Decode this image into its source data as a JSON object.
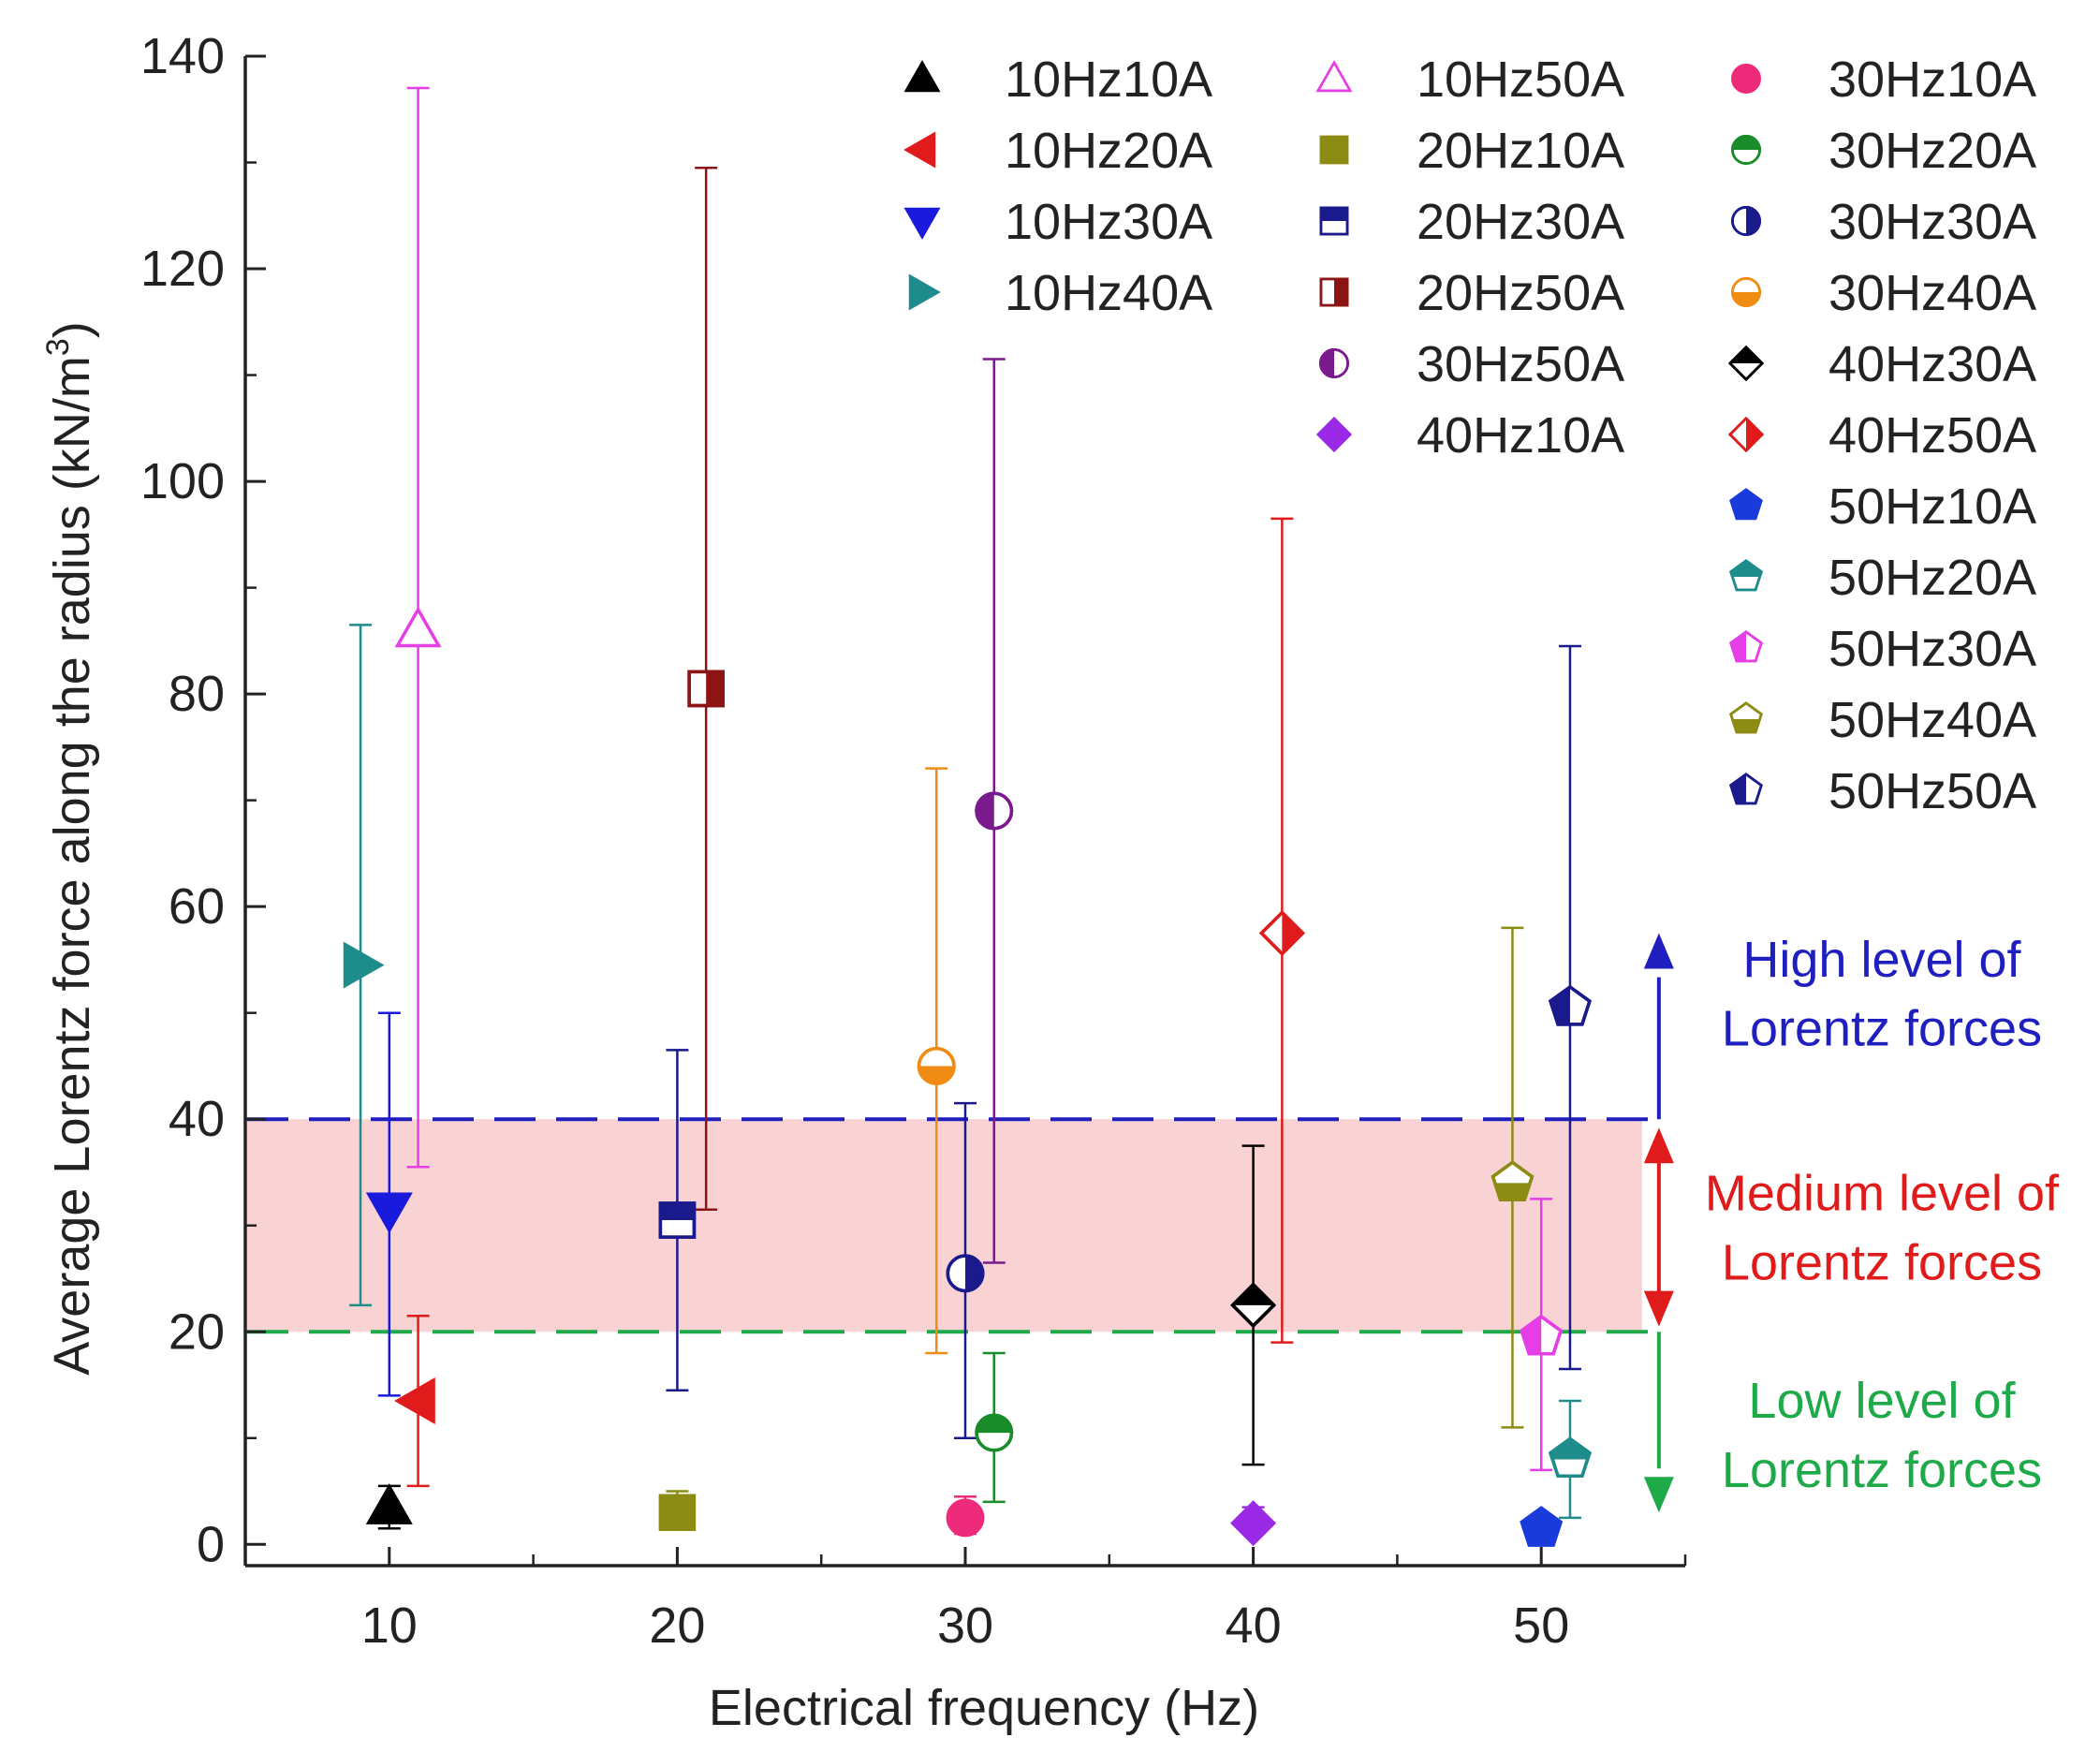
{
  "chart_data": {
    "type": "scatter",
    "xlabel": "Electrical frequency (Hz)",
    "ylabel": "Average Lorentz force along the radius (kN/m",
    "ylabel_sup": "3",
    "ylabel_close": ")",
    "xlim": [
      5,
      55
    ],
    "ylim": [
      -2,
      140
    ],
    "x_ticks": [
      10,
      20,
      30,
      40,
      50
    ],
    "y_ticks": [
      0,
      20,
      40,
      60,
      80,
      100,
      120,
      140
    ],
    "thresholds": [
      {
        "name": "high",
        "y": 40,
        "color": "#1f1fbf"
      },
      {
        "name": "low",
        "y": 20,
        "color": "#1faa4a"
      }
    ],
    "band": {
      "from": 20,
      "to": 40,
      "color": "#f9d3d3"
    },
    "annotations": [
      {
        "name": "high",
        "lines": [
          "High level of",
          "Lorentz forces"
        ],
        "color": "#1f1fbf"
      },
      {
        "name": "medium",
        "lines": [
          "Medium level of",
          "Lorentz forces"
        ],
        "color": "#e01b1b"
      },
      {
        "name": "low",
        "lines": [
          "Low level of",
          "Lorentz forces"
        ],
        "color": "#1faa4a"
      }
    ],
    "series": [
      {
        "name": "10Hz10A",
        "x": 10,
        "y": 3.5,
        "low": 1.5,
        "high": 5.5,
        "color": "#000000",
        "marker": "triangle-up",
        "fill": "full"
      },
      {
        "name": "10Hz20A",
        "x": 11,
        "y": 13.5,
        "low": 5.5,
        "high": 21.5,
        "color": "#e01b1b",
        "marker": "triangle-left",
        "fill": "full"
      },
      {
        "name": "10Hz30A",
        "x": 10,
        "y": 31.5,
        "low": 14,
        "high": 50,
        "color": "#1a1adc",
        "marker": "triangle-down",
        "fill": "full"
      },
      {
        "name": "10Hz40A",
        "x": 9,
        "y": 54.5,
        "low": 22.5,
        "high": 86.5,
        "color": "#1f8c8c",
        "marker": "triangle-right",
        "fill": "full"
      },
      {
        "name": "10Hz50A",
        "x": 11,
        "y": 86,
        "low": 35.5,
        "high": 137,
        "color": "#e63ee6",
        "marker": "triangle-up",
        "fill": "none"
      },
      {
        "name": "20Hz10A",
        "x": 20,
        "y": 3,
        "low": 1.5,
        "high": 5,
        "color": "#8c8c14",
        "marker": "square",
        "fill": "full"
      },
      {
        "name": "20Hz30A",
        "x": 20,
        "y": 30.5,
        "low": 14.5,
        "high": 46.5,
        "color": "#1a1a8c",
        "marker": "square",
        "fill": "top"
      },
      {
        "name": "20Hz50A",
        "x": 21,
        "y": 80.5,
        "low": 31.5,
        "high": 129.5,
        "color": "#8c1414",
        "marker": "square",
        "fill": "right"
      },
      {
        "name": "30Hz10A",
        "x": 30,
        "y": 2.5,
        "low": 1,
        "high": 4.5,
        "color": "#ee2a7b",
        "marker": "circle",
        "fill": "full"
      },
      {
        "name": "30Hz20A",
        "x": 31,
        "y": 10.5,
        "low": 4,
        "high": 18,
        "color": "#1a8c2a",
        "marker": "circle",
        "fill": "top"
      },
      {
        "name": "30Hz30A",
        "x": 30,
        "y": 25.5,
        "low": 10,
        "high": 41.5,
        "color": "#1a1a8c",
        "marker": "circle",
        "fill": "right"
      },
      {
        "name": "30Hz40A",
        "x": 29,
        "y": 45,
        "low": 18,
        "high": 73,
        "color": "#f08c14",
        "marker": "circle",
        "fill": "bottom"
      },
      {
        "name": "30Hz50A",
        "x": 31,
        "y": 69,
        "low": 26.5,
        "high": 111.5,
        "color": "#7a1a8c",
        "marker": "circle",
        "fill": "left"
      },
      {
        "name": "40Hz10A",
        "x": 40,
        "y": 2,
        "low": 1,
        "high": 3.5,
        "color": "#9a2ae6",
        "marker": "diamond",
        "fill": "full"
      },
      {
        "name": "40Hz30A",
        "x": 40,
        "y": 22.5,
        "low": 7.5,
        "high": 37.5,
        "color": "#000000",
        "marker": "diamond",
        "fill": "top"
      },
      {
        "name": "40Hz50A",
        "x": 41,
        "y": 57.5,
        "low": 19,
        "high": 96.5,
        "color": "#e01b1b",
        "marker": "diamond",
        "fill": "right"
      },
      {
        "name": "50Hz10A",
        "x": 50,
        "y": 1.5,
        "low": 0.5,
        "high": 2.5,
        "color": "#1a3adc",
        "marker": "pentagon",
        "fill": "full"
      },
      {
        "name": "50Hz20A",
        "x": 51,
        "y": 8,
        "low": 2.5,
        "high": 13.5,
        "color": "#1f8c8c",
        "marker": "pentagon",
        "fill": "top"
      },
      {
        "name": "50Hz30A",
        "x": 50,
        "y": 19.5,
        "low": 7,
        "high": 32.5,
        "color": "#e63ee6",
        "marker": "pentagon",
        "fill": "left"
      },
      {
        "name": "50Hz40A",
        "x": 49,
        "y": 34,
        "low": 11,
        "high": 58,
        "color": "#8c8c14",
        "marker": "pentagon",
        "fill": "bottom"
      },
      {
        "name": "50Hz50A",
        "x": 51,
        "y": 50.5,
        "low": 16.5,
        "high": 84.5,
        "color": "#1a1a8c",
        "marker": "pentagon",
        "fill": "left"
      }
    ],
    "legend": {
      "placement": "top-right",
      "columns": [
        [
          "10Hz10A",
          "10Hz20A",
          "10Hz30A",
          "10Hz40A"
        ],
        [
          "10Hz50A",
          "20Hz10A",
          "20Hz30A",
          "20Hz50A",
          "30Hz50A",
          "40Hz10A"
        ],
        [
          "30Hz10A",
          "30Hz20A",
          "30Hz30A",
          "30Hz40A",
          "40Hz30A",
          "40Hz50A",
          "50Hz10A",
          "50Hz20A",
          "50Hz30A",
          "50Hz40A",
          "50Hz50A"
        ]
      ]
    }
  }
}
